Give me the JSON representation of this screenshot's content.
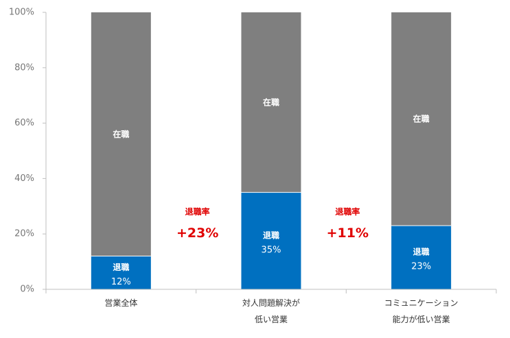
{
  "chart_data": {
    "type": "bar",
    "stacked": true,
    "title": "",
    "xlabel": "",
    "ylabel": "",
    "ylim": [
      0,
      100
    ],
    "yticks": [
      "0%",
      "20%",
      "40%",
      "60%",
      "80%",
      "100%"
    ],
    "categories": [
      [
        "営業全体"
      ],
      [
        "対人問題解決が",
        "低い営業"
      ],
      [
        "コミュニケーション",
        "能力が低い営業"
      ]
    ],
    "series": [
      {
        "name": "退職",
        "values": [
          12,
          35,
          23
        ],
        "value_labels": [
          "12%",
          "35%",
          "23%"
        ],
        "color": "#0070c0"
      },
      {
        "name": "在職",
        "values": [
          88,
          65,
          77
        ],
        "color": "#7f7f7f"
      }
    ],
    "annotations": [
      {
        "between": [
          0,
          1
        ],
        "label": "退職率",
        "value": "+23%"
      },
      {
        "between": [
          1,
          2
        ],
        "label": "退職率",
        "value": "+11%"
      }
    ],
    "grid": false,
    "legend": "none"
  },
  "colors": {
    "annotation": "#e00000",
    "axis": "#bfbfbf",
    "tick_text": "#767676"
  }
}
